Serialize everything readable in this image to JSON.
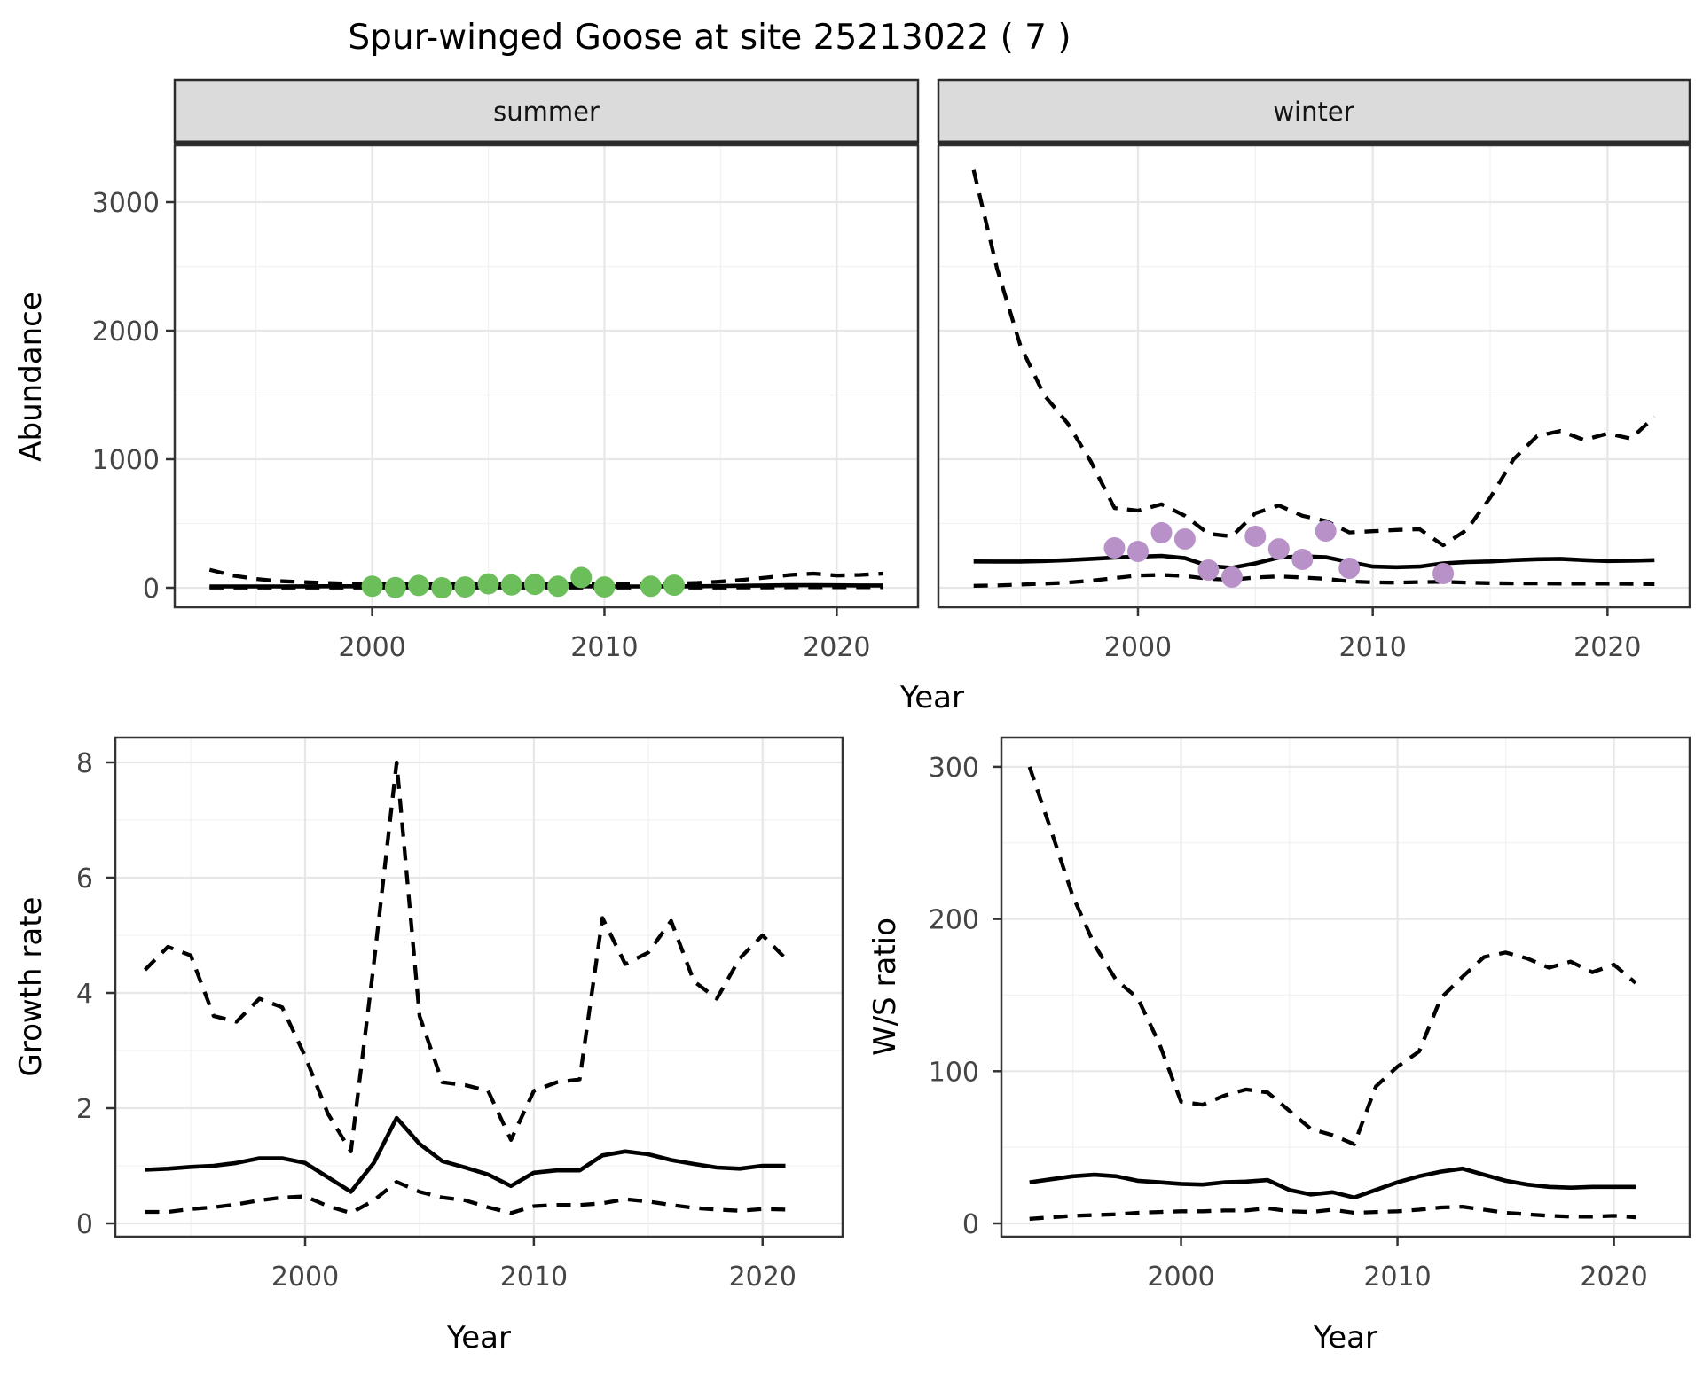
{
  "title": "Spur-winged Goose at site 25213022 ( 7 )",
  "colors": {
    "background": "#ffffff",
    "panel_background": "#ffffff",
    "panel_border": "#333333",
    "strip_background": "#DBDBDB",
    "strip_border": "#2b2b2b",
    "grid_major": "#E7E7E7",
    "grid_minor": "#F2F2F2",
    "line": "#000000",
    "tick_label": "#454545",
    "summer_points": "#6CBE5B",
    "winter_points": "#B991C9"
  },
  "top_row": {
    "ylabel": "Abundance",
    "xlabel": "Year",
    "facets": [
      {
        "label": "summer"
      },
      {
        "label": "winter"
      }
    ]
  },
  "bottom_left": {
    "ylabel": "Growth rate",
    "xlabel": "Year"
  },
  "bottom_right": {
    "ylabel": "W/S ratio",
    "xlabel": "Year"
  },
  "chart_data": [
    {
      "id": "abundance-summer",
      "type": "line",
      "facet": "summer",
      "ylabel": "Abundance",
      "xlabel": "Year",
      "x_ticks": [
        2000,
        2010,
        2020
      ],
      "y_ticks": [
        0,
        1000,
        2000,
        3000
      ],
      "xlim": [
        1991.5,
        2023.5
      ],
      "ylim": [
        -152,
        3441
      ],
      "grid": true,
      "legend": "none",
      "x": [
        1993,
        1994,
        1995,
        1996,
        1997,
        1998,
        1999,
        2000,
        2001,
        2002,
        2003,
        2004,
        2005,
        2006,
        2007,
        2008,
        2009,
        2010,
        2011,
        2012,
        2013,
        2014,
        2015,
        2016,
        2017,
        2018,
        2019,
        2020,
        2021,
        2022
      ],
      "series": [
        {
          "name": "solid",
          "style": "solid",
          "values": [
            10,
            10,
            10,
            10,
            11,
            12,
            12,
            12,
            11,
            10,
            10,
            11,
            12,
            13,
            13,
            12,
            12,
            11,
            10,
            10,
            11,
            12,
            14,
            16,
            18,
            20,
            20,
            19,
            18,
            18
          ]
        },
        {
          "name": "upper-dashed",
          "style": "dashed",
          "values": [
            140,
            95,
            68,
            52,
            44,
            38,
            32,
            30,
            28,
            26,
            26,
            27,
            29,
            32,
            32,
            30,
            32,
            30,
            28,
            30,
            32,
            38,
            48,
            62,
            80,
            100,
            110,
            95,
            100,
            110
          ]
        },
        {
          "name": "lower-dashed",
          "style": "dashed",
          "values": [
            2,
            2,
            2,
            2,
            2,
            2,
            2,
            2,
            2,
            2,
            2,
            2,
            2,
            2,
            2,
            2,
            2,
            2,
            2,
            2,
            2,
            2,
            2,
            3,
            3,
            4,
            4,
            4,
            4,
            4
          ]
        }
      ],
      "points": {
        "name": "summer-observed",
        "color": "#6CBE5B",
        "x": [
          2000,
          2001,
          2002,
          2003,
          2004,
          2005,
          2006,
          2007,
          2008,
          2009,
          2010,
          2012,
          2013
        ],
        "y": [
          12,
          2,
          18,
          0,
          6,
          30,
          22,
          26,
          12,
          80,
          6,
          12,
          20
        ]
      }
    },
    {
      "id": "abundance-winter",
      "type": "line",
      "facet": "winter",
      "ylabel": "Abundance",
      "xlabel": "Year",
      "x_ticks": [
        2000,
        2010,
        2020
      ],
      "y_ticks": [
        0,
        1000,
        2000,
        3000
      ],
      "xlim": [
        1991.5,
        2023.5
      ],
      "ylim": [
        -152,
        3441
      ],
      "grid": true,
      "legend": "none",
      "x": [
        1993,
        1994,
        1995,
        1996,
        1997,
        1998,
        1999,
        2000,
        2001,
        2002,
        2003,
        2004,
        2005,
        2006,
        2007,
        2008,
        2009,
        2010,
        2011,
        2012,
        2013,
        2014,
        2015,
        2016,
        2017,
        2018,
        2019,
        2020,
        2021,
        2022
      ],
      "series": [
        {
          "name": "solid",
          "style": "solid",
          "values": [
            205,
            204,
            204,
            208,
            215,
            225,
            235,
            242,
            248,
            230,
            170,
            155,
            190,
            235,
            245,
            238,
            200,
            165,
            160,
            165,
            190,
            200,
            205,
            215,
            222,
            225,
            215,
            208,
            210,
            215
          ]
        },
        {
          "name": "upper-dashed",
          "style": "dashed",
          "values": [
            3250,
            2480,
            1880,
            1500,
            1280,
            980,
            620,
            600,
            650,
            560,
            420,
            400,
            580,
            640,
            560,
            520,
            430,
            440,
            450,
            455,
            330,
            450,
            700,
            1000,
            1180,
            1220,
            1150,
            1200,
            1160,
            1330
          ]
        },
        {
          "name": "lower-dashed",
          "style": "dashed",
          "values": [
            15,
            18,
            25,
            32,
            40,
            55,
            75,
            95,
            100,
            92,
            70,
            62,
            80,
            88,
            80,
            70,
            50,
            42,
            40,
            44,
            46,
            40,
            36,
            34,
            34,
            32,
            32,
            32,
            30,
            28
          ]
        }
      ],
      "points": {
        "name": "winter-observed",
        "color": "#B991C9",
        "x": [
          1999,
          2000,
          2001,
          2002,
          2003,
          2004,
          2005,
          2006,
          2007,
          2008,
          2009,
          2013
        ],
        "y": [
          310,
          283,
          428,
          379,
          138,
          83,
          400,
          303,
          221,
          441,
          152,
          110
        ]
      }
    },
    {
      "id": "growth-rate",
      "type": "line",
      "ylabel": "Growth rate",
      "xlabel": "Year",
      "x_ticks": [
        2000,
        2010,
        2020
      ],
      "y_ticks": [
        0,
        2,
        4,
        6,
        8
      ],
      "xlim": [
        1991.7,
        2023.5
      ],
      "ylim": [
        -0.23,
        8.43
      ],
      "grid": true,
      "legend": "none",
      "x": [
        1993,
        1994,
        1995,
        1996,
        1997,
        1998,
        1999,
        2000,
        2001,
        2002,
        2003,
        2004,
        2005,
        2006,
        2007,
        2008,
        2009,
        2010,
        2011,
        2012,
        2013,
        2014,
        2015,
        2016,
        2017,
        2018,
        2019,
        2020,
        2021
      ],
      "series": [
        {
          "name": "solid",
          "style": "solid",
          "values": [
            0.93,
            0.95,
            0.98,
            1.0,
            1.05,
            1.13,
            1.13,
            1.05,
            0.8,
            0.55,
            1.05,
            1.83,
            1.38,
            1.08,
            0.97,
            0.85,
            0.65,
            0.88,
            0.92,
            0.92,
            1.18,
            1.25,
            1.2,
            1.1,
            1.03,
            0.97,
            0.95,
            1.0,
            1.0
          ]
        },
        {
          "name": "upper-dashed",
          "style": "dashed",
          "values": [
            4.4,
            4.8,
            4.65,
            3.6,
            3.5,
            3.9,
            3.75,
            2.9,
            1.9,
            1.25,
            4.5,
            8.0,
            3.6,
            2.45,
            2.4,
            2.3,
            1.45,
            2.3,
            2.45,
            2.5,
            5.3,
            4.5,
            4.7,
            5.25,
            4.2,
            3.9,
            4.6,
            5.0,
            4.6
          ]
        },
        {
          "name": "lower-dashed",
          "style": "dashed",
          "values": [
            0.2,
            0.2,
            0.25,
            0.28,
            0.33,
            0.4,
            0.45,
            0.47,
            0.3,
            0.18,
            0.4,
            0.72,
            0.55,
            0.45,
            0.4,
            0.28,
            0.18,
            0.3,
            0.32,
            0.32,
            0.35,
            0.42,
            0.38,
            0.32,
            0.27,
            0.24,
            0.22,
            0.25,
            0.24
          ]
        }
      ]
    },
    {
      "id": "ws-ratio",
      "type": "line",
      "ylabel": "W/S ratio",
      "xlabel": "Year",
      "x_ticks": [
        2000,
        2010,
        2020
      ],
      "y_ticks": [
        0,
        100,
        200,
        300
      ],
      "xlim": [
        1991.7,
        2023.5
      ],
      "ylim": [
        -9,
        319
      ],
      "grid": true,
      "legend": "none",
      "x": [
        1993,
        1994,
        1995,
        1996,
        1997,
        1998,
        1999,
        2000,
        2001,
        2002,
        2003,
        2004,
        2005,
        2006,
        2007,
        2008,
        2009,
        2010,
        2011,
        2012,
        2013,
        2014,
        2015,
        2016,
        2017,
        2018,
        2019,
        2020,
        2021
      ],
      "series": [
        {
          "name": "solid",
          "style": "solid",
          "values": [
            27,
            29,
            31,
            32,
            31,
            28,
            27,
            26,
            25.5,
            27,
            27.5,
            28.5,
            22,
            19,
            20.5,
            17,
            22,
            27,
            31,
            34,
            36,
            32,
            28,
            25.5,
            24,
            23.5,
            24,
            24,
            24
          ]
        },
        {
          "name": "upper-dashed",
          "style": "dashed",
          "values": [
            300,
            258,
            215,
            183,
            160,
            148,
            118,
            80,
            78,
            84,
            88,
            86,
            74,
            62,
            58,
            52,
            90,
            103,
            113,
            148,
            162,
            175,
            178,
            174,
            168,
            172,
            165,
            170,
            158
          ]
        },
        {
          "name": "lower-dashed",
          "style": "dashed",
          "values": [
            3,
            4,
            5,
            5.5,
            6,
            7,
            7.5,
            8,
            8,
            8.5,
            8.5,
            10,
            8,
            7.5,
            9,
            7,
            7.5,
            8,
            9,
            10.5,
            11,
            9,
            7,
            6,
            5,
            4.5,
            4.5,
            5,
            4
          ]
        }
      ]
    }
  ]
}
